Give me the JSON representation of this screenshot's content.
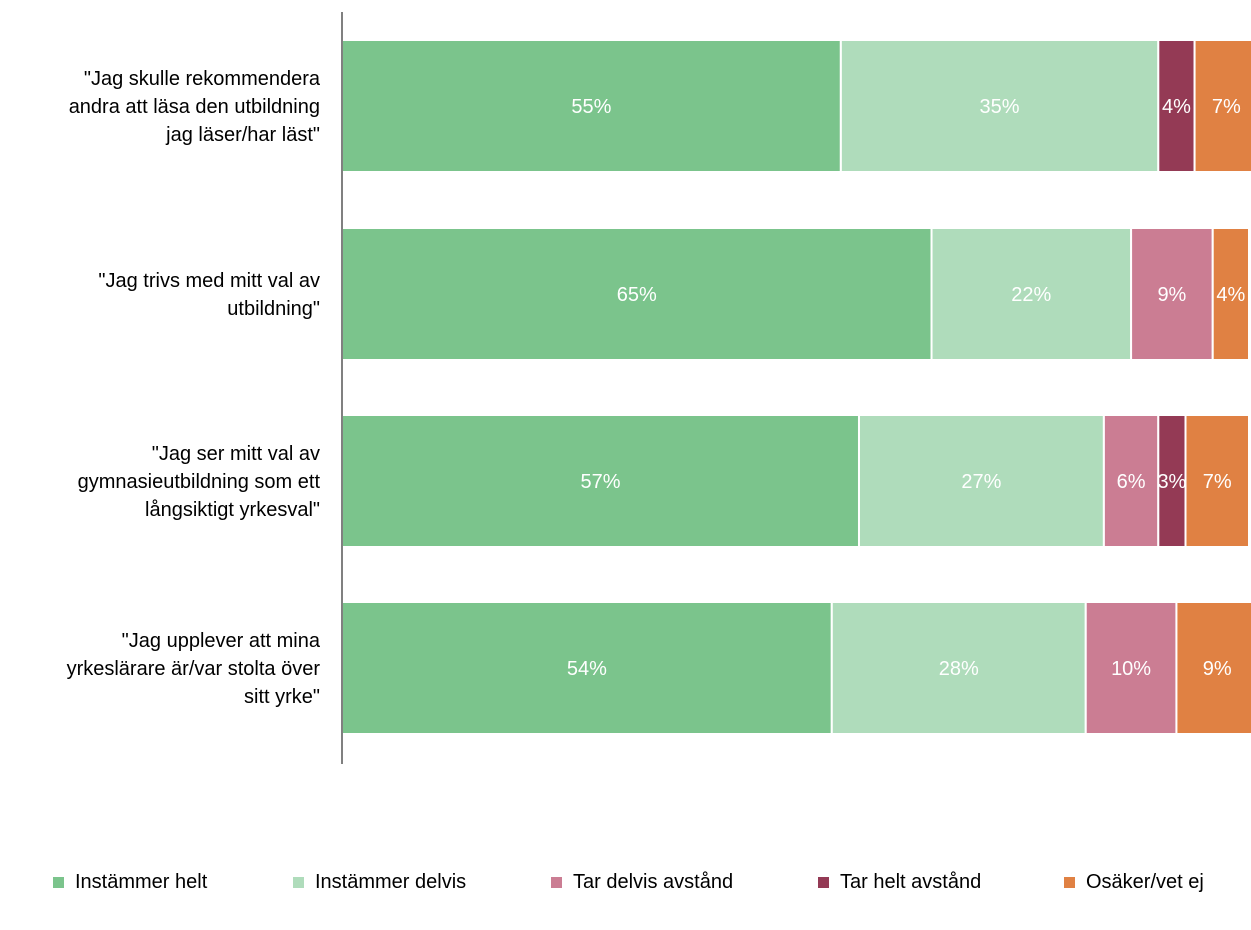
{
  "chart_data": {
    "type": "bar",
    "orientation": "horizontal",
    "stacked": true,
    "categories": [
      [
        "\"Jag skulle rekommendera",
        "andra att läsa den utbildning",
        "jag läser/har läst\""
      ],
      [
        "\"Jag trivs med mitt val av",
        "utbildning\""
      ],
      [
        "\"Jag ser mitt val av",
        "gymnasieutbildning som ett",
        "långsiktigt yrkesval\""
      ],
      [
        "\"Jag upplever att mina",
        "yrkeslärare är/var stolta över",
        "sitt yrke\""
      ]
    ],
    "series": [
      {
        "name": "Instämmer helt",
        "color": "#7bc48c",
        "values": [
          55,
          65,
          57,
          54
        ],
        "labels": [
          "55%",
          "65%",
          "57%",
          "54%"
        ]
      },
      {
        "name": "Instämmer delvis",
        "color": "#afdcbb",
        "values": [
          35,
          22,
          27,
          28
        ],
        "labels": [
          "35%",
          "22%",
          "27%",
          "28%"
        ]
      },
      {
        "name": "Tar delvis avstånd",
        "color": "#cb7d93",
        "values": [
          0,
          9,
          6,
          10
        ],
        "labels": [
          "",
          "9%",
          "6%",
          "10%"
        ]
      },
      {
        "name": "Tar helt avstånd",
        "color": "#943a55",
        "values": [
          4,
          0,
          3,
          0
        ],
        "labels": [
          "4%",
          "",
          "3%",
          ""
        ]
      },
      {
        "name": "Osäker/vet ej",
        "color": "#e08143",
        "values": [
          7,
          4,
          7,
          9
        ],
        "labels": [
          "7%",
          "4%",
          "7%",
          "9%"
        ]
      }
    ],
    "xlim": [
      0,
      100
    ],
    "legend_position": "bottom",
    "grid": false
  }
}
